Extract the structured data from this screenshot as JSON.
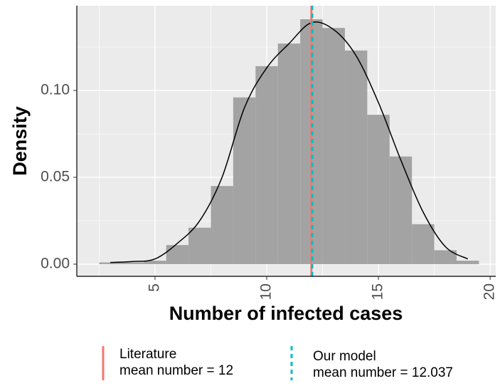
{
  "chart_data": {
    "type": "histogram",
    "xlabel": "Number of infected cases",
    "ylabel": "Density",
    "bins": [
      2.5,
      3.5,
      4.5,
      5.5,
      6.5,
      7.5,
      8.5,
      9.5,
      10.5,
      11.5,
      12.5,
      13.5,
      14.5,
      15.5,
      16.5,
      17.5,
      18.5,
      19.5
    ],
    "values": [
      0.001,
      0.001,
      0.002,
      0.011,
      0.021,
      0.045,
      0.096,
      0.114,
      0.127,
      0.141,
      0.136,
      0.123,
      0.086,
      0.062,
      0.023,
      0.008,
      0.002
    ],
    "color": "#a3a3a3",
    "density": {
      "color": "#000000",
      "x": [
        3,
        4,
        5,
        6,
        7,
        8,
        9,
        10,
        11,
        12,
        13,
        14,
        15,
        16,
        17,
        18,
        19
      ],
      "y": [
        0.001,
        0.0015,
        0.003,
        0.012,
        0.025,
        0.05,
        0.09,
        0.113,
        0.127,
        0.139,
        0.135,
        0.12,
        0.093,
        0.06,
        0.03,
        0.01,
        0.003
      ]
    },
    "vlines": [
      {
        "name": "Literature\nmean number = 12",
        "value": 12,
        "color": "#F8766D",
        "dashed": false
      },
      {
        "name": "Our model\nmean number = 12.037",
        "value": 12.037,
        "color": "#00BFC4",
        "dashed": true
      }
    ],
    "xlim": [
      1.5,
      20.25
    ],
    "xticks": [
      5,
      10,
      15,
      20
    ],
    "ylim": [
      -0.007,
      0.1488
    ],
    "yticks": [
      {
        "value": 0,
        "label": "0.00"
      },
      {
        "value": 0.05,
        "label": "0.05"
      },
      {
        "value": 0.1,
        "label": "0.10"
      }
    ],
    "grid": true
  }
}
